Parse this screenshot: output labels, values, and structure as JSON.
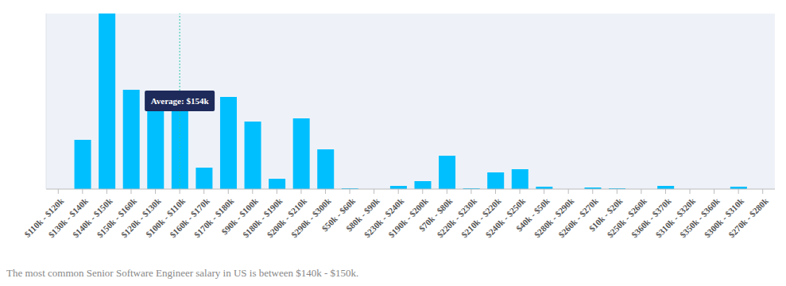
{
  "chart_data": {
    "type": "bar",
    "categories": [
      "$110k - $120k",
      "$130k - $140k",
      "$140k - $150k",
      "$150k - $160k",
      "$120k - $130k",
      "$100k - $110k",
      "$160k - $170k",
      "$170k - $180k",
      "$90k - $100k",
      "$180k - $190k",
      "$200k - $210k",
      "$290k - $300k",
      "$50k - $60k",
      "$80k - $90k",
      "$230k - $240k",
      "$190k - $200k",
      "$70k - $80k",
      "$220k - $230k",
      "$210k - $220k",
      "$240k - $250k",
      "$40k - $50k",
      "$280k - $290k",
      "$260k - $270k",
      "$10k - $20k",
      "$250k - $260k",
      "$360k - $370k",
      "$310k - $320k",
      "$350k - $360k",
      "$300k - $310k",
      "$270k - $280k"
    ],
    "values": [
      0,
      62,
      221,
      125,
      124,
      118,
      27,
      116,
      85,
      13,
      89,
      50,
      1,
      0,
      4,
      10,
      42,
      1,
      21,
      25,
      3,
      0,
      2,
      1,
      0,
      4,
      0,
      0,
      3,
      0
    ],
    "color": "#00bfff",
    "ylim": [
      0,
      221
    ],
    "grid": false,
    "tick_labels": "x",
    "annotations": [
      {
        "text": "Average: $154k",
        "category": "$100k - $110k"
      }
    ],
    "caption": "The most common Senior Software Engineer salary in US is between $140k - $150k."
  }
}
